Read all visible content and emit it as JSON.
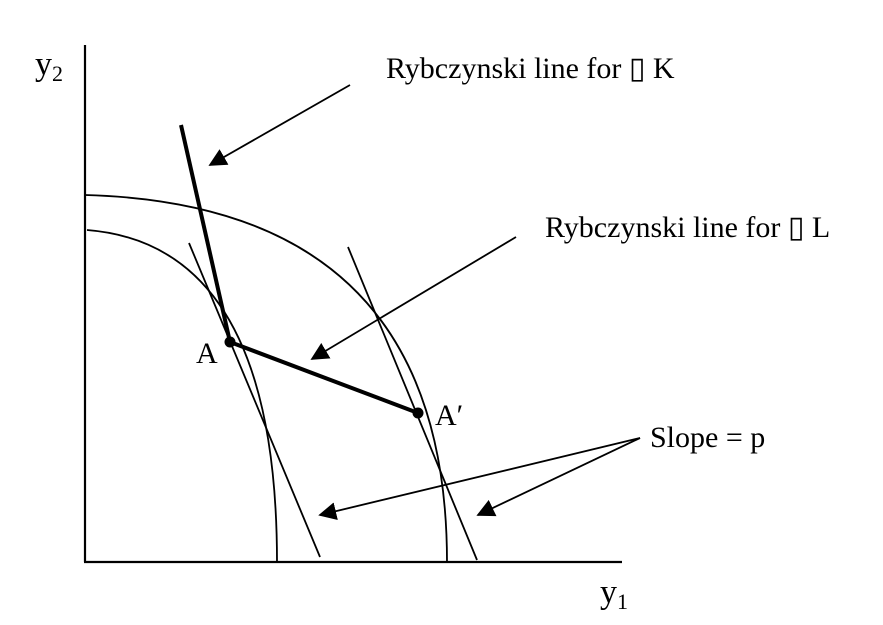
{
  "axes": {
    "y_label_base": "y",
    "y_label_sub": "2",
    "x_label_base": "y",
    "x_label_sub": "1"
  },
  "labels": {
    "rybczynski_k": "Rybczynski line for ▯ K",
    "rybczynski_l": "Rybczynski line for ▯ L",
    "slope": "Slope = p",
    "point_a": "A",
    "point_a_prime": "A′"
  },
  "colors": {
    "stroke": "#000000",
    "background": "#ffffff"
  }
}
